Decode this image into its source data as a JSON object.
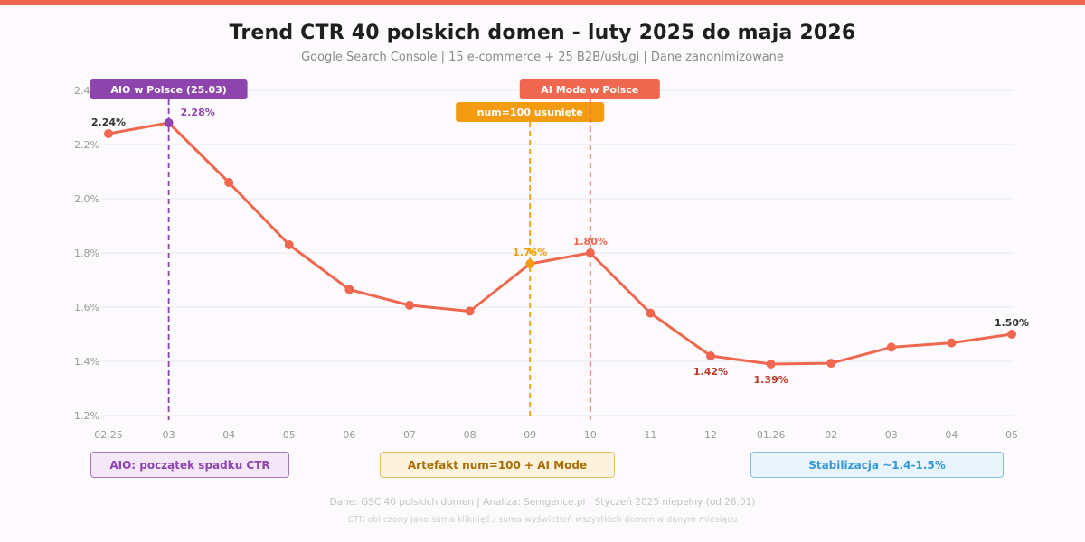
{
  "header": {
    "title": "Trend CTR 40 polskich domen - luty 2025 do maja 2026",
    "subtitle": "Google Search Console | 15 e-commerce + 25 B2B/usługi | Dane zanonimizowane"
  },
  "colors": {
    "accent": "#f0674f",
    "aio": "#8e44ad",
    "num100": "#f39c12",
    "aimode": "#f0674f",
    "stabilization": "#3498db",
    "low_label": "#c0392b",
    "dark_label": "#333333"
  },
  "chart_data": {
    "type": "line",
    "title": "Trend CTR 40 polskich domen - luty 2025 do maja 2026",
    "categories": [
      "02.25",
      "03",
      "04",
      "05",
      "06",
      "07",
      "08",
      "09",
      "10",
      "11",
      "12",
      "01.26",
      "02",
      "03",
      "04",
      "05"
    ],
    "series": [
      {
        "values": [
          2.24,
          2.28,
          2.06,
          1.83,
          1.665,
          1.607,
          1.585,
          1.76,
          1.8,
          1.578,
          1.42,
          1.39,
          1.393,
          1.452,
          1.468,
          1.5
        ]
      }
    ],
    "y_ticks": [
      "1.2%",
      "1.4%",
      "1.6%",
      "1.8%",
      "2.0%",
      "2.2%",
      "2.4%"
    ],
    "ylim": [
      1.2,
      2.4
    ],
    "grid": true,
    "point_labels": [
      {
        "index": 0,
        "text": "2.24%",
        "style": "dark"
      },
      {
        "index": 1,
        "text": "2.28%",
        "style": "aio"
      },
      {
        "index": 7,
        "text": "1.76%",
        "style": "num100"
      },
      {
        "index": 8,
        "text": "1.80%",
        "style": "aimode"
      },
      {
        "index": 10,
        "text": "1.42%",
        "style": "low"
      },
      {
        "index": 11,
        "text": "1.39%",
        "style": "low"
      },
      {
        "index": 15,
        "text": "1.50%",
        "style": "dark"
      }
    ],
    "events": [
      {
        "index": 1,
        "label": "AIO w Polsce (25.03)",
        "style": "aio"
      },
      {
        "index": 7,
        "label": "num=100 usunięte",
        "style": "num100"
      },
      {
        "index": 8,
        "label": "AI Mode w Polsce",
        "style": "aimode"
      }
    ]
  },
  "callouts": [
    {
      "text": "AIO: początek spadku CTR",
      "style": "aio"
    },
    {
      "text": "Artefakt num=100 + AI Mode",
      "style": "num100"
    },
    {
      "text": "Stabilizacja ~1.4-1.5%",
      "style": "stabilization"
    }
  ],
  "footer": {
    "line1": "Dane: GSC 40 polskich domen | Analiza: Semgence.pl | Styczeń 2025 niepełny (od 26.01)",
    "line2": "CTR obliczony jako suma kliknięć / suma wyświetleń wszystkich domen w danym miesiącu"
  }
}
